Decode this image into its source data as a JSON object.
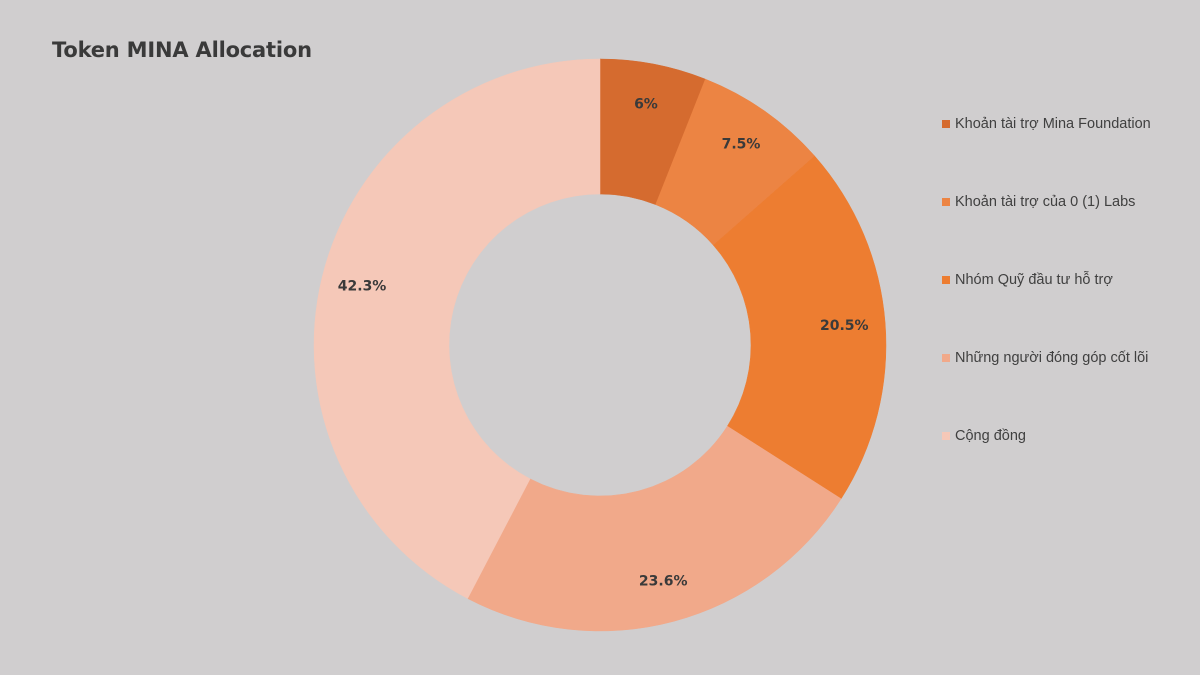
{
  "chart_data": {
    "type": "pie",
    "title": "Token MINA Allocation",
    "donut": true,
    "legend_position": "right",
    "slices": [
      {
        "label": "Khoản tài trợ Mina Foundation",
        "value": 6,
        "display": "6%",
        "color": "#d56b2f"
      },
      {
        "label": "Khoản tài trợ của 0 (1) Labs",
        "value": 7.5,
        "display": "7.5%",
        "color": "#ec8443"
      },
      {
        "label": "Nhóm Quỹ đầu tư hỗ trợ",
        "value": 20.5,
        "display": "20.5%",
        "color": "#ed7d31"
      },
      {
        "label": "Những người đóng góp cốt lõi",
        "value": 23.6,
        "display": "23.6%",
        "color": "#f1a98a"
      },
      {
        "label": "Cộng đồng",
        "value": 42.3,
        "display": "42.3%",
        "color": "#f5c8b8"
      }
    ]
  }
}
